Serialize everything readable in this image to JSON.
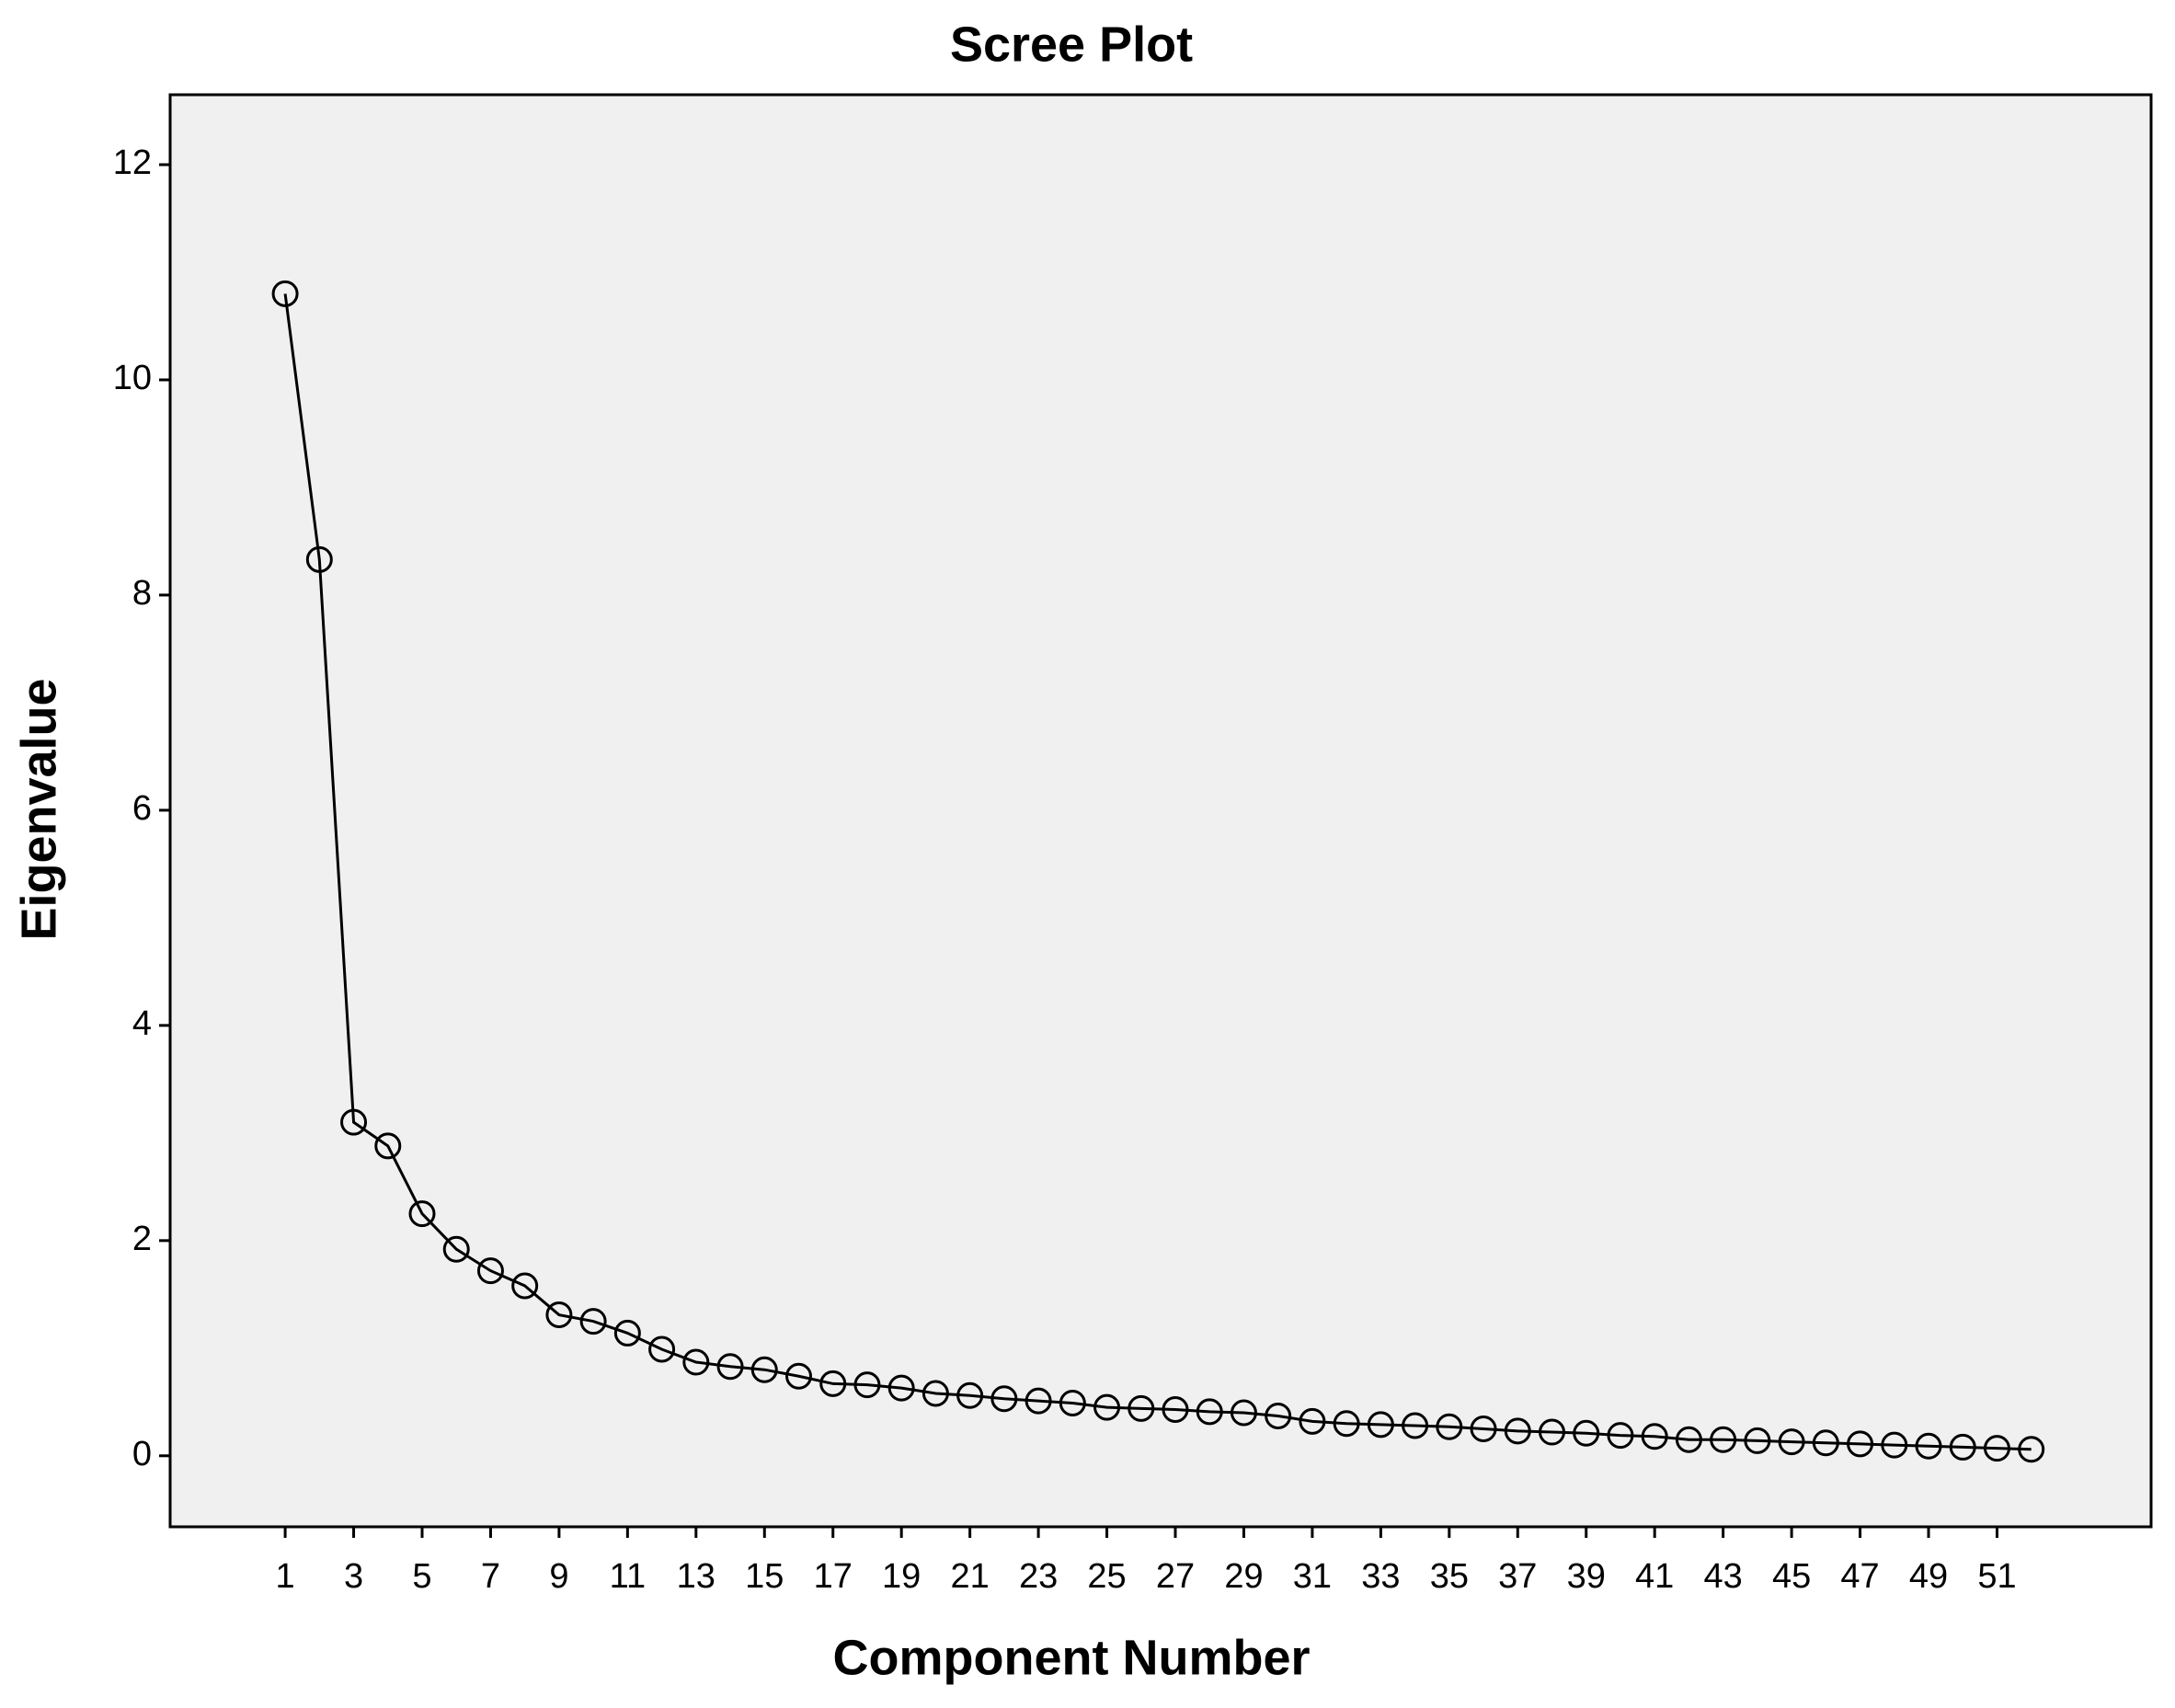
{
  "chart_data": {
    "type": "line",
    "title": "Scree Plot",
    "x_label": "Component Number",
    "y_label": "Eigenvalue",
    "x": [
      1,
      2,
      3,
      4,
      5,
      6,
      7,
      8,
      9,
      10,
      11,
      12,
      13,
      14,
      15,
      16,
      17,
      18,
      19,
      20,
      21,
      22,
      23,
      24,
      25,
      26,
      27,
      28,
      29,
      30,
      31,
      32,
      33,
      34,
      35,
      36,
      37,
      38,
      39,
      40,
      41,
      42,
      43,
      44,
      45,
      46,
      47,
      48,
      49,
      50,
      51,
      52
    ],
    "values": [
      10.8,
      8.33,
      3.1,
      2.88,
      2.25,
      1.92,
      1.72,
      1.58,
      1.31,
      1.25,
      1.14,
      0.99,
      0.87,
      0.83,
      0.8,
      0.74,
      0.67,
      0.66,
      0.63,
      0.58,
      0.56,
      0.53,
      0.51,
      0.49,
      0.45,
      0.44,
      0.43,
      0.41,
      0.4,
      0.37,
      0.32,
      0.3,
      0.29,
      0.28,
      0.27,
      0.25,
      0.23,
      0.22,
      0.21,
      0.19,
      0.18,
      0.15,
      0.15,
      0.14,
      0.13,
      0.12,
      0.11,
      0.1,
      0.09,
      0.08,
      0.07,
      0.06
    ],
    "color": "#000000",
    "xlim": [
      -2.36,
      55.5
    ],
    "ylim": [
      -0.66,
      12.65
    ],
    "xticks": [
      1,
      3,
      5,
      7,
      9,
      11,
      13,
      15,
      17,
      19,
      21,
      23,
      25,
      27,
      29,
      31,
      33,
      35,
      37,
      39,
      41,
      43,
      45,
      47,
      49,
      51
    ],
    "yticks": [
      0,
      2,
      4,
      6,
      8,
      10,
      12
    ]
  }
}
